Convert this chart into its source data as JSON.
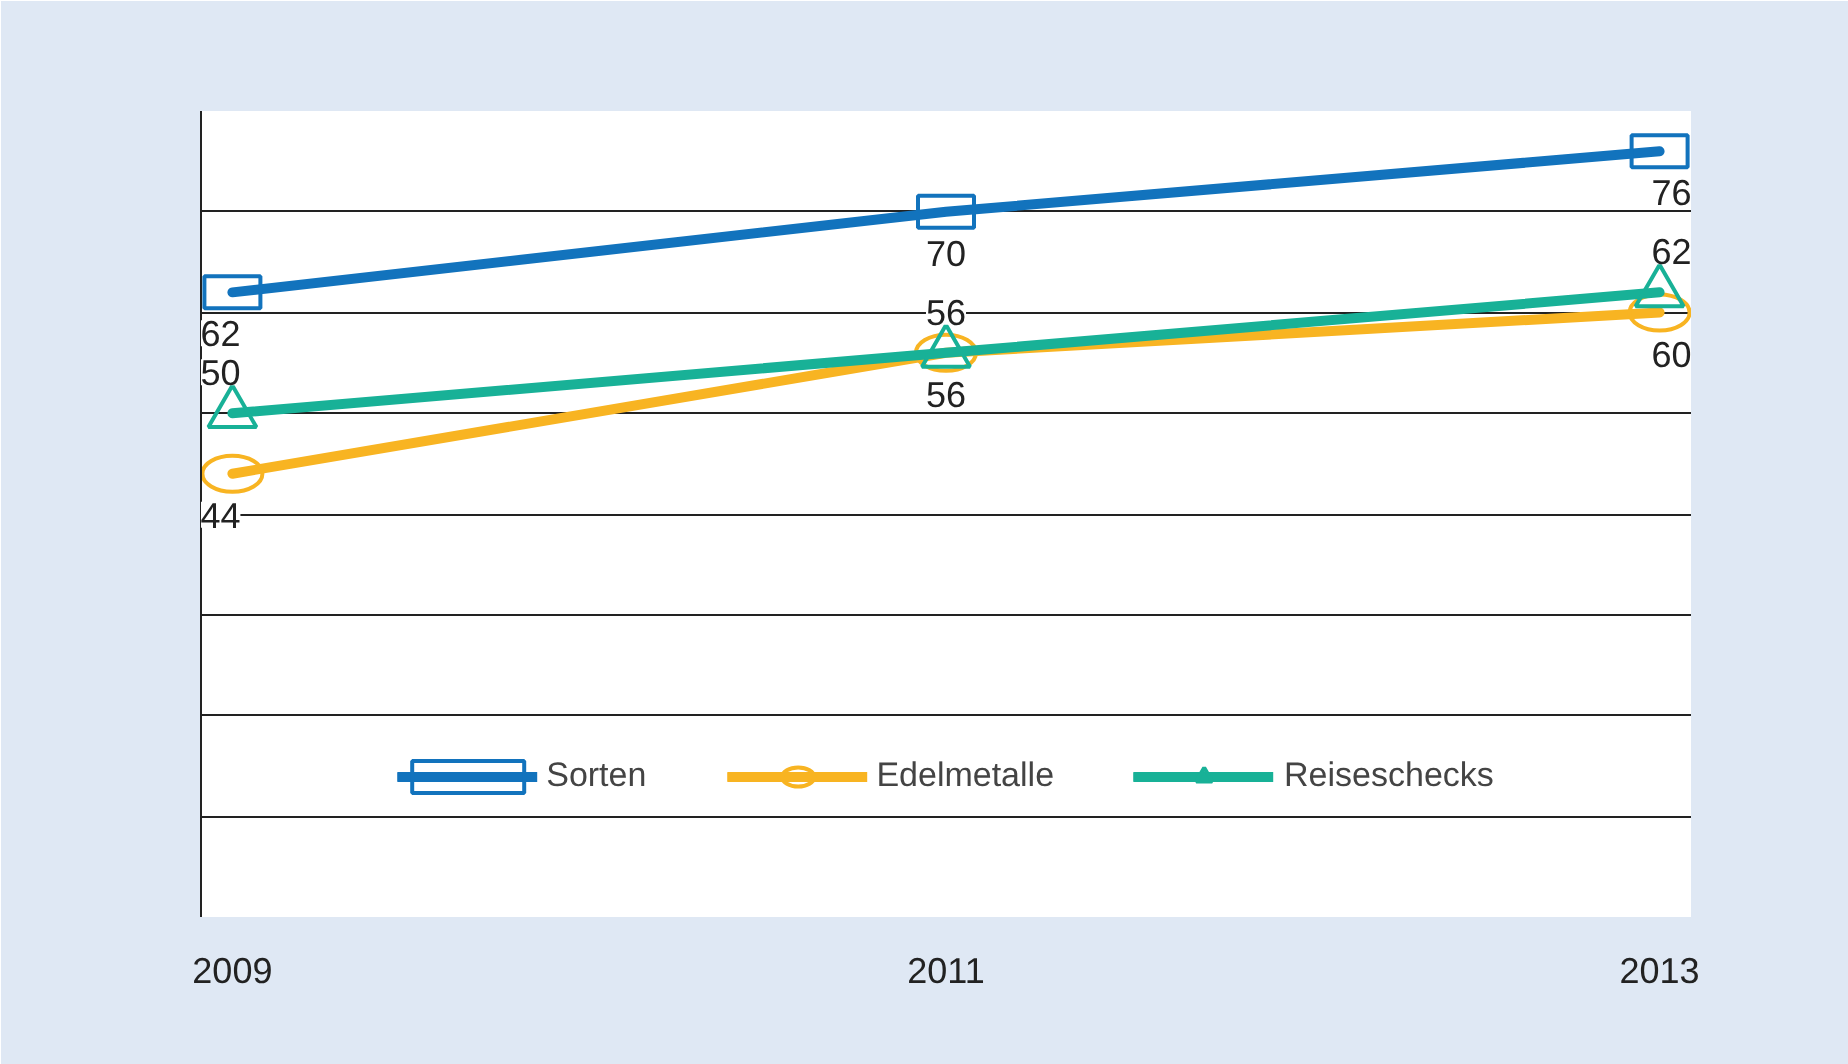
{
  "chart_data": {
    "type": "line",
    "categories": [
      "2009",
      "2011",
      "2013"
    ],
    "series": [
      {
        "name": "Sorten",
        "color": "#1273bd",
        "marker": "square",
        "values": [
          62,
          70,
          76
        ]
      },
      {
        "name": "Edelmetalle",
        "color": "#f8b422",
        "marker": "circle",
        "values": [
          44,
          56,
          60
        ]
      },
      {
        "name": "Reiseschecks",
        "color": "#18b197",
        "marker": "triangle",
        "values": [
          50,
          56,
          62
        ]
      }
    ],
    "ylim": [
      0,
      80
    ],
    "tick_labels": "x",
    "grid": "y",
    "legend": "bottom",
    "data_labels": true,
    "line_style": "solid"
  }
}
